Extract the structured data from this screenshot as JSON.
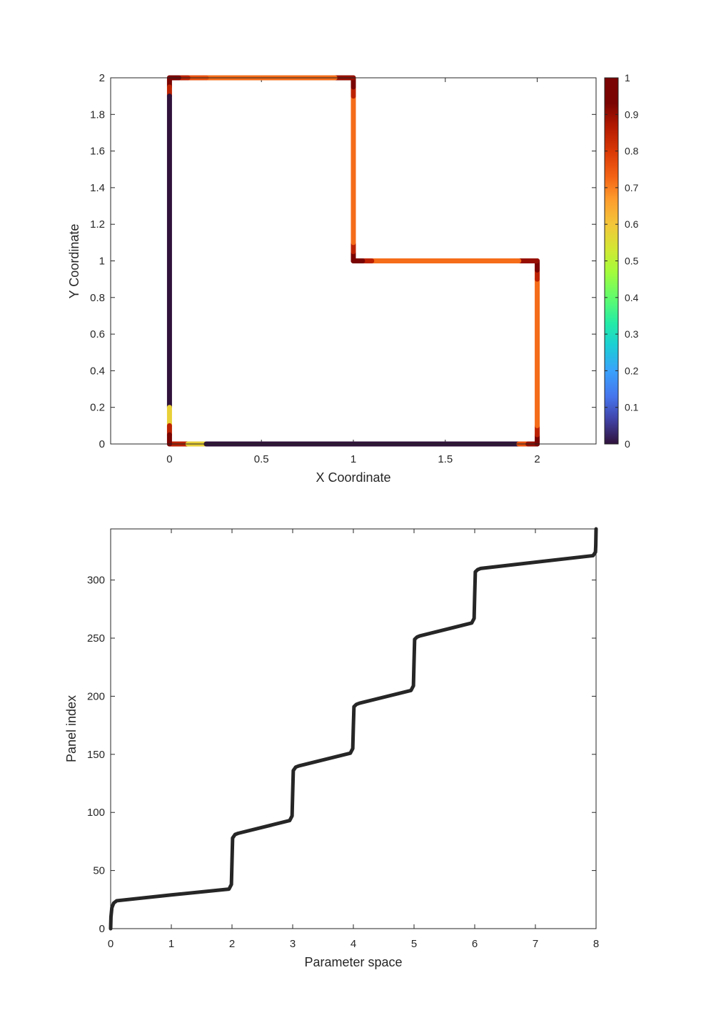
{
  "chart_data": [
    {
      "type": "scatter",
      "xlabel": "X Coordinate",
      "ylabel": "Y Coordinate",
      "xlim": [
        -0.32,
        2.32
      ],
      "ylim": [
        0,
        2
      ],
      "x_ticks": [
        "0",
        "0.5",
        "1",
        "1.5",
        "2"
      ],
      "y_ticks": [
        "0",
        "0.2",
        "0.4",
        "0.6",
        "0.8",
        "1",
        "1.2",
        "1.4",
        "1.6",
        "1.8",
        "2"
      ],
      "colorbar": {
        "colormap": "turbo",
        "range": [
          0,
          1
        ],
        "ticks": [
          "0",
          "0.1",
          "0.2",
          "0.3",
          "0.4",
          "0.5",
          "0.6",
          "0.7",
          "0.8",
          "0.9",
          "1"
        ]
      },
      "boundary": [
        [
          0,
          0
        ],
        [
          2,
          0
        ],
        [
          2,
          1
        ],
        [
          1,
          1
        ],
        [
          1,
          2
        ],
        [
          0,
          2
        ]
      ],
      "segments": [
        {
          "from": [
            0,
            0
          ],
          "to": [
            2,
            0
          ],
          "bands": [
            {
              "start": 0,
              "end": 0.1,
              "value": 0.85
            },
            {
              "start": 0.1,
              "end": 0.2,
              "value": 0.58
            },
            {
              "start": 0.2,
              "end": 1.9,
              "value": 0.0
            },
            {
              "start": 1.9,
              "end": 1.95,
              "value": 0.76
            },
            {
              "start": 1.95,
              "end": 2.0,
              "value": 0.9
            }
          ]
        },
        {
          "from": [
            2,
            0
          ],
          "to": [
            2,
            1
          ],
          "bands": [
            {
              "start": 0,
              "end": 0.05,
              "value": 0.95
            },
            {
              "start": 0.05,
              "end": 0.1,
              "value": 0.85
            },
            {
              "start": 0.1,
              "end": 0.9,
              "value": 0.72
            },
            {
              "start": 0.9,
              "end": 0.95,
              "value": 0.85
            },
            {
              "start": 0.95,
              "end": 1.0,
              "value": 0.95
            }
          ]
        },
        {
          "from": [
            2,
            1
          ],
          "to": [
            1,
            1
          ],
          "bands": [
            {
              "start": 0,
              "end": 0.1,
              "value": 0.9
            },
            {
              "start": 0.1,
              "end": 0.9,
              "value": 0.72
            },
            {
              "start": 0.9,
              "end": 0.95,
              "value": 0.85
            },
            {
              "start": 0.95,
              "end": 1.0,
              "value": 0.97
            }
          ]
        },
        {
          "from": [
            1,
            1
          ],
          "to": [
            1,
            2
          ],
          "bands": [
            {
              "start": 0,
              "end": 0.05,
              "value": 0.95
            },
            {
              "start": 0.05,
              "end": 0.1,
              "value": 0.85
            },
            {
              "start": 0.1,
              "end": 0.9,
              "value": 0.72
            },
            {
              "start": 0.9,
              "end": 0.95,
              "value": 0.85
            },
            {
              "start": 0.95,
              "end": 1.0,
              "value": 0.97
            }
          ]
        },
        {
          "from": [
            1,
            2
          ],
          "to": [
            0,
            2
          ],
          "bands": [
            {
              "start": 0,
              "end": 0.1,
              "value": 0.9
            },
            {
              "start": 0.1,
              "end": 0.8,
              "value": 0.72
            },
            {
              "start": 0.8,
              "end": 0.9,
              "value": 0.76
            },
            {
              "start": 0.9,
              "end": 0.95,
              "value": 0.85
            },
            {
              "start": 0.95,
              "end": 1.0,
              "value": 0.97
            }
          ]
        },
        {
          "from": [
            0,
            2
          ],
          "to": [
            0,
            0
          ],
          "bands": [
            {
              "start": 0,
              "end": 0.05,
              "value": 0.95
            },
            {
              "start": 0.05,
              "end": 0.1,
              "value": 0.85
            },
            {
              "start": 0.1,
              "end": 1.8,
              "value": 0.0
            },
            {
              "start": 1.8,
              "end": 1.9,
              "value": 0.58
            },
            {
              "start": 1.9,
              "end": 1.95,
              "value": 0.85
            },
            {
              "start": 1.95,
              "end": 2.0,
              "value": 0.95
            }
          ]
        }
      ]
    },
    {
      "type": "line",
      "xlabel": "Parameter space",
      "ylabel": "Panel index",
      "xlim": [
        0,
        8
      ],
      "ylim": [
        0,
        344
      ],
      "x_ticks": [
        "0",
        "1",
        "2",
        "3",
        "4",
        "5",
        "6",
        "7",
        "8"
      ],
      "y_ticks": [
        "0",
        "50",
        "100",
        "150",
        "200",
        "250",
        "300"
      ],
      "color": "#262626",
      "points": [
        [
          0,
          0
        ],
        [
          0.005,
          10
        ],
        [
          0.02,
          18
        ],
        [
          0.05,
          22
        ],
        [
          0.1,
          24
        ],
        [
          1,
          29
        ],
        [
          1.95,
          34
        ],
        [
          1.99,
          38
        ],
        [
          2.0,
          58
        ],
        [
          2.01,
          78
        ],
        [
          2.05,
          81
        ],
        [
          2.1,
          82
        ],
        [
          2.95,
          93
        ],
        [
          2.99,
          97
        ],
        [
          3.0,
          117
        ],
        [
          3.01,
          136
        ],
        [
          3.05,
          139
        ],
        [
          3.1,
          140
        ],
        [
          3.95,
          151
        ],
        [
          3.99,
          155
        ],
        [
          4.0,
          174
        ],
        [
          4.01,
          191
        ],
        [
          4.05,
          193
        ],
        [
          4.1,
          194
        ],
        [
          4.95,
          205
        ],
        [
          4.99,
          209
        ],
        [
          5.0,
          230
        ],
        [
          5.01,
          249
        ],
        [
          5.05,
          251
        ],
        [
          5.1,
          252
        ],
        [
          5.95,
          263
        ],
        [
          5.99,
          267
        ],
        [
          6.0,
          288
        ],
        [
          6.01,
          307
        ],
        [
          6.05,
          309
        ],
        [
          6.1,
          310
        ],
        [
          7.95,
          321
        ],
        [
          7.99,
          324
        ],
        [
          7.995,
          330
        ],
        [
          8.0,
          344
        ]
      ]
    }
  ]
}
